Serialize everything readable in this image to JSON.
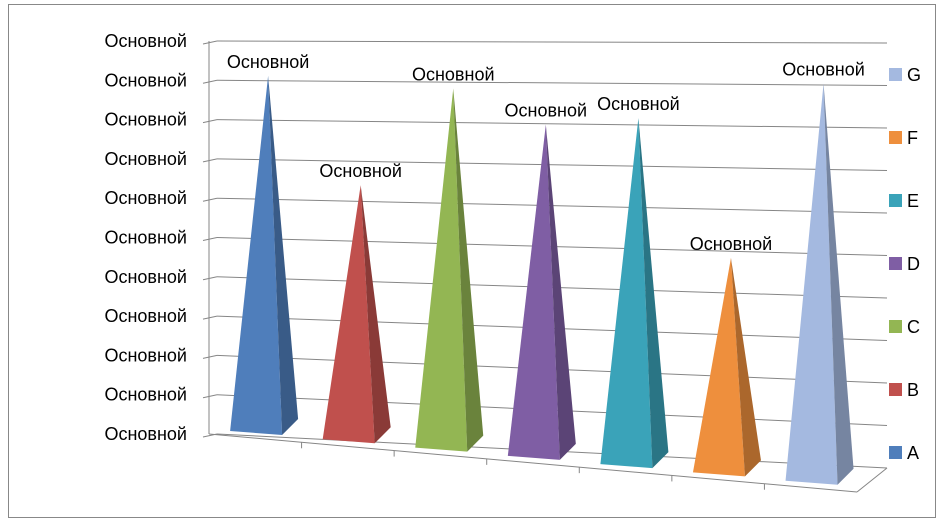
{
  "chart_data": {
    "type": "bar",
    "shape": "pyramid-3d",
    "categories": [
      "A",
      "B",
      "C",
      "D",
      "E",
      "F",
      "G"
    ],
    "values": [
      0.96,
      0.67,
      0.93,
      0.84,
      0.86,
      0.52,
      0.95
    ],
    "ylim": [
      0,
      1
    ],
    "ytick_labels": [
      "Основной",
      "Основной",
      "Основной",
      "Основной",
      "Основной",
      "Основной",
      "Основной",
      "Основной",
      "Основной",
      "Основной",
      "Основной"
    ],
    "data_labels": [
      "Основной",
      "Основной",
      "Основной",
      "Основной",
      "Основной",
      "Основной",
      "Основной"
    ],
    "grid": true,
    "legend": {
      "placement": "right",
      "entries": [
        {
          "label": "G",
          "color": "#A4B9E0"
        },
        {
          "label": "F",
          "color": "#EE8F3D"
        },
        {
          "label": "E",
          "color": "#3AA3B9"
        },
        {
          "label": "D",
          "color": "#7F5EA4"
        },
        {
          "label": "C",
          "color": "#93B653"
        },
        {
          "label": "B",
          "color": "#C0504D"
        },
        {
          "label": "A",
          "color": "#4F7EBB"
        }
      ]
    },
    "colors": [
      "#4F7EBB",
      "#C0504D",
      "#93B653",
      "#7F5EA4",
      "#3AA3B9",
      "#EE8F3D",
      "#A4B9E0"
    ]
  }
}
